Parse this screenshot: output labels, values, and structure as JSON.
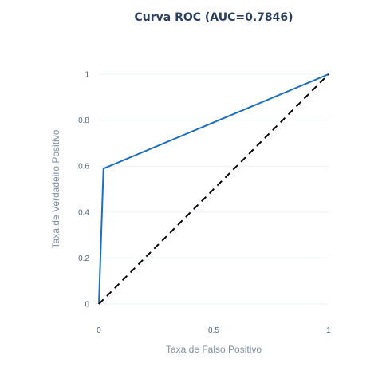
{
  "chart_data": {
    "type": "line",
    "title": "Curva ROC (AUC=0.7846)",
    "xlabel": "Taxa de Falso Positivo",
    "ylabel": "Taxa de Verdadeiro Positivo",
    "xlim": [
      0,
      1
    ],
    "ylim": [
      0,
      1
    ],
    "x_ticks": [
      {
        "value": 0,
        "label": "0"
      },
      {
        "value": 0.5,
        "label": "0.5"
      },
      {
        "value": 1,
        "label": "1"
      }
    ],
    "y_ticks": [
      {
        "value": 0,
        "label": "0"
      },
      {
        "value": 0.2,
        "label": "0.2"
      },
      {
        "value": 0.4,
        "label": "0.4"
      },
      {
        "value": 0.6,
        "label": "0.6"
      },
      {
        "value": 0.8,
        "label": "0.8"
      },
      {
        "value": 1,
        "label": "1"
      }
    ],
    "grid": true,
    "legend": "none",
    "series": [
      {
        "x": [
          0,
          0.0199,
          1
        ],
        "y": [
          0,
          0.5891,
          1
        ],
        "color": "#1f6fbf",
        "dash": "solid"
      },
      {
        "x": [
          0,
          1
        ],
        "y": [
          0,
          1
        ],
        "color": "#000000",
        "dash": "dash"
      }
    ]
  }
}
